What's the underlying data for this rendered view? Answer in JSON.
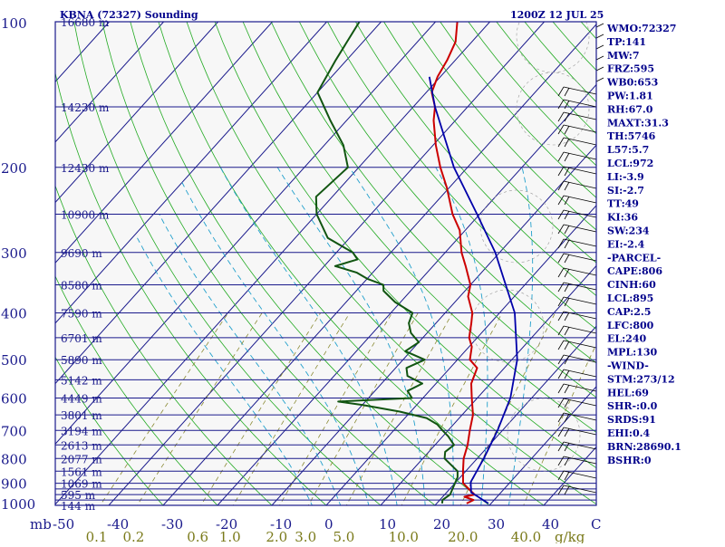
{
  "header": {
    "station": "KBNA (72327) Sounding",
    "time": "1200Z 12 JUL 25"
  },
  "chart_data": {
    "type": "skew-t",
    "title": "KBNA (72327) Sounding",
    "valid_time": "1200Z 12 JUL 25",
    "pressure_levels": [
      100,
      200,
      300,
      400,
      500,
      600,
      700,
      800,
      900,
      1000
    ],
    "isobar_levels": [
      100,
      150,
      200,
      250,
      300,
      350,
      400,
      450,
      500,
      550,
      600,
      650,
      700,
      750,
      800,
      850,
      900,
      925,
      950,
      975,
      1000
    ],
    "height_labels": [
      {
        "p": 100,
        "text": "16680 m"
      },
      {
        "p": 150,
        "text": "14230 m"
      },
      {
        "p": 200,
        "text": "12430 m"
      },
      {
        "p": 250,
        "text": "10900 m"
      },
      {
        "p": 300,
        "text": "9690 m"
      },
      {
        "p": 350,
        "text": "8580 m"
      },
      {
        "p": 400,
        "text": "7590 m"
      },
      {
        "p": 450,
        "text": "6701 m"
      },
      {
        "p": 500,
        "text": "5890 m"
      },
      {
        "p": 550,
        "text": "5142 m"
      },
      {
        "p": 600,
        "text": "4449 m"
      },
      {
        "p": 650,
        "text": "3801 m"
      },
      {
        "p": 700,
        "text": "3194 m"
      },
      {
        "p": 750,
        "text": "2613 m"
      },
      {
        "p": 800,
        "text": "2077 m"
      },
      {
        "p": 850,
        "text": "1561 m"
      },
      {
        "p": 900,
        "text": "1069 m"
      },
      {
        "p": 950,
        "text": "595 m"
      },
      {
        "p": 1000,
        "text": "144 m"
      }
    ],
    "temperature_ticks": [
      -50,
      -40,
      -30,
      -20,
      -10,
      0,
      10,
      20,
      30,
      40
    ],
    "xlim": [
      -50,
      50
    ],
    "mixing_ratio_ticks": [
      "0.1",
      "0.2",
      "0.6",
      "1.0",
      "2.0",
      "3.0",
      "5.0",
      "10.0",
      "20.0",
      "40.0"
    ],
    "units": {
      "pressure": "mb",
      "temperature": "C",
      "mixing_ratio": "g/kg"
    },
    "temperature": [
      [
        991,
        25.5
      ],
      [
        975,
        26.2
      ],
      [
        960,
        24.0
      ],
      [
        950,
        25.5
      ],
      [
        925,
        23.5
      ],
      [
        900,
        21.5
      ],
      [
        850,
        19.5
      ],
      [
        800,
        17.5
      ],
      [
        750,
        16.0
      ],
      [
        700,
        14.0
      ],
      [
        650,
        12.0
      ],
      [
        600,
        9.0
      ],
      [
        560,
        6.5
      ],
      [
        520,
        5.0
      ],
      [
        500,
        2.3
      ],
      [
        470,
        0.5
      ],
      [
        450,
        -1.5
      ],
      [
        420,
        -3.5
      ],
      [
        400,
        -5.0
      ],
      [
        370,
        -8.5
      ],
      [
        350,
        -10.0
      ],
      [
        320,
        -14.0
      ],
      [
        300,
        -17.0
      ],
      [
        270,
        -21.0
      ],
      [
        250,
        -25.0
      ],
      [
        220,
        -30.5
      ],
      [
        200,
        -35.0
      ],
      [
        180,
        -39.5
      ],
      [
        160,
        -44.0
      ],
      [
        150,
        -46.0
      ],
      [
        140,
        -49.0
      ],
      [
        130,
        -50.5
      ],
      [
        120,
        -51.5
      ],
      [
        110,
        -53.0
      ],
      [
        100,
        -56.0
      ]
    ],
    "dewpoint": [
      [
        991,
        21.0
      ],
      [
        975,
        20.5
      ],
      [
        950,
        21.0
      ],
      [
        925,
        20.5
      ],
      [
        900,
        20.0
      ],
      [
        875,
        19.5
      ],
      [
        850,
        18.5
      ],
      [
        800,
        14.0
      ],
      [
        775,
        13.0
      ],
      [
        750,
        13.5
      ],
      [
        720,
        11.0
      ],
      [
        700,
        9.0
      ],
      [
        680,
        7.0
      ],
      [
        660,
        4.0
      ],
      [
        640,
        -2.0
      ],
      [
        620,
        -10.0
      ],
      [
        610,
        -15.0
      ],
      [
        600,
        -2.0
      ],
      [
        580,
        -4.0
      ],
      [
        560,
        -2.5
      ],
      [
        540,
        -6.5
      ],
      [
        520,
        -8.0
      ],
      [
        500,
        -6.0
      ],
      [
        480,
        -11.0
      ],
      [
        460,
        -10.0
      ],
      [
        440,
        -13.0
      ],
      [
        420,
        -15.0
      ],
      [
        400,
        -16.0
      ],
      [
        380,
        -21.0
      ],
      [
        360,
        -25.0
      ],
      [
        350,
        -26.0
      ],
      [
        340,
        -30.0
      ],
      [
        330,
        -33.0
      ],
      [
        320,
        -38.0
      ],
      [
        310,
        -35.0
      ],
      [
        300,
        -37.0
      ],
      [
        280,
        -44.0
      ],
      [
        250,
        -50.0
      ],
      [
        230,
        -53.0
      ],
      [
        200,
        -52.0
      ],
      [
        180,
        -56.5
      ],
      [
        160,
        -63.0
      ],
      [
        140,
        -70.0
      ],
      [
        120,
        -72.0
      ],
      [
        100,
        -74.0
      ]
    ],
    "parcel": [
      [
        991,
        29.5
      ],
      [
        960,
        26.5
      ],
      [
        940,
        24.5
      ],
      [
        895,
        22.7
      ],
      [
        800,
        21.2
      ],
      [
        700,
        19.1
      ],
      [
        600,
        16.1
      ],
      [
        500,
        11.0
      ],
      [
        400,
        2.8
      ],
      [
        300,
        -10.8
      ],
      [
        250,
        -20.5
      ],
      [
        200,
        -32.5
      ],
      [
        150,
        -46.0
      ],
      [
        130,
        -52.0
      ]
    ]
  },
  "indices": [
    "WMO:72327",
    "TP:141",
    "MW:7",
    "FRZ:595",
    "WB0:653",
    "PW:1.81",
    "RH:67.0",
    "MAXT:31.3",
    "TH:5746",
    "L57:5.7",
    "LCL:972",
    "LI:-3.9",
    "SI:-2.7",
    "TT:49",
    "KI:36",
    "SW:234",
    "EI:-2.4",
    "-PARCEL-",
    "CAPE:806",
    "CINH:60",
    "LCL:895",
    "CAP:2.5",
    "LFC:800",
    "EL:240",
    "MPL:130",
    "-WIND-",
    "STM:273/12",
    "HEL:69",
    "SHR-:0.0",
    "SRDS:91",
    "EHI:0.4",
    "BRN:28690.1",
    "BSHR:0"
  ],
  "colors": {
    "frame": "#1a1a8c",
    "isobar": "#1a1a8c",
    "isotherm": "#1a1a8c",
    "dry_adiabat": "#22aa22",
    "moist_adiabat": "#22a0cc",
    "mixing_ratio": "#8a8a33",
    "temperature": "#cc0000",
    "dewpoint": "#115511",
    "parcel": "#0000aa",
    "wind": "#000000"
  }
}
